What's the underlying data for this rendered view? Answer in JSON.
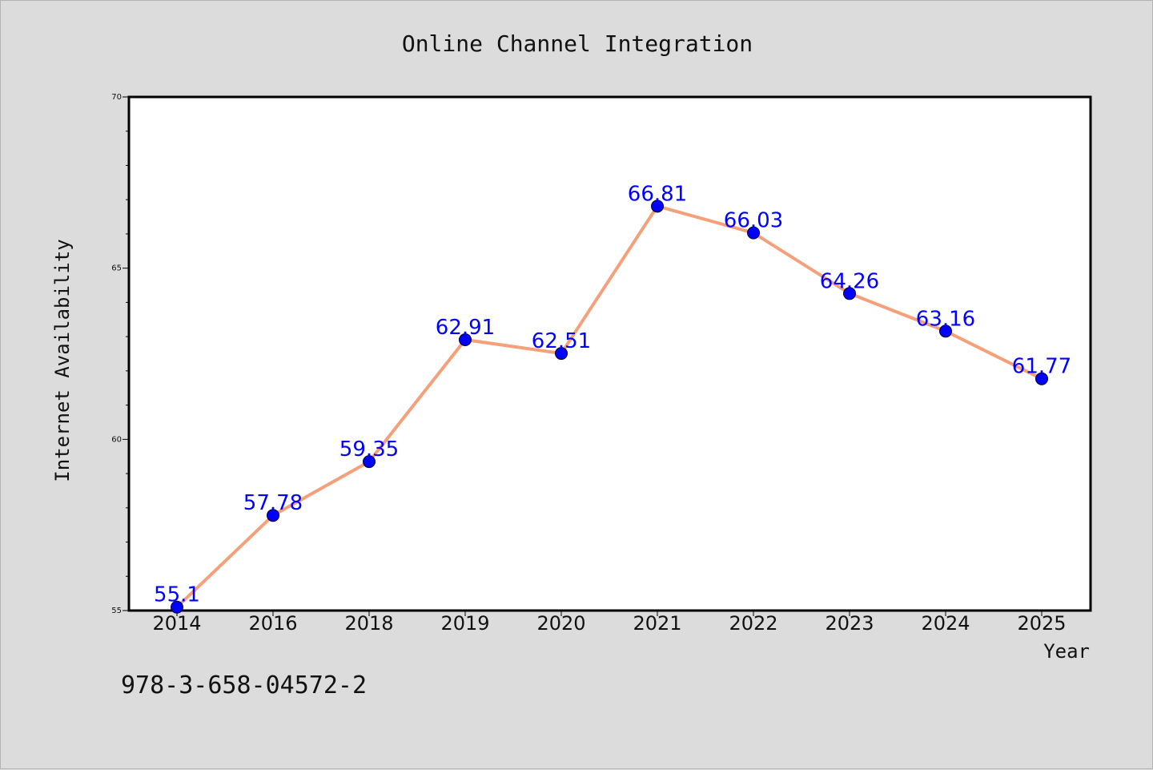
{
  "chart_data": {
    "type": "line",
    "title": "Online Channel Integration",
    "xlabel": "Year",
    "ylabel": "Internet Availability",
    "categories": [
      "2014",
      "2016",
      "2018",
      "2019",
      "2020",
      "2021",
      "2022",
      "2023",
      "2024",
      "2025"
    ],
    "series": [
      {
        "values": [
          55.1,
          57.78,
          59.35,
          62.91,
          62.51,
          66.81,
          66.03,
          64.26,
          63.16,
          61.77
        ],
        "labels": [
          "55.1",
          "57.78",
          "59.35",
          "62.91",
          "62.51",
          "66.81",
          "66.03",
          "64.26",
          "63.16",
          "61.77"
        ],
        "line_color": "#f4a07a",
        "marker_color": "#0000ff",
        "label_color": "#0000ff"
      }
    ],
    "ylim": [
      55,
      70
    ],
    "yticks": [
      "55",
      "60",
      "65",
      "70"
    ],
    "grid": false,
    "legend": "none"
  },
  "footer_text": "978-3-658-04572-2",
  "colors": {
    "background": "#dcdcdc",
    "plot_background": "#ffffff"
  }
}
